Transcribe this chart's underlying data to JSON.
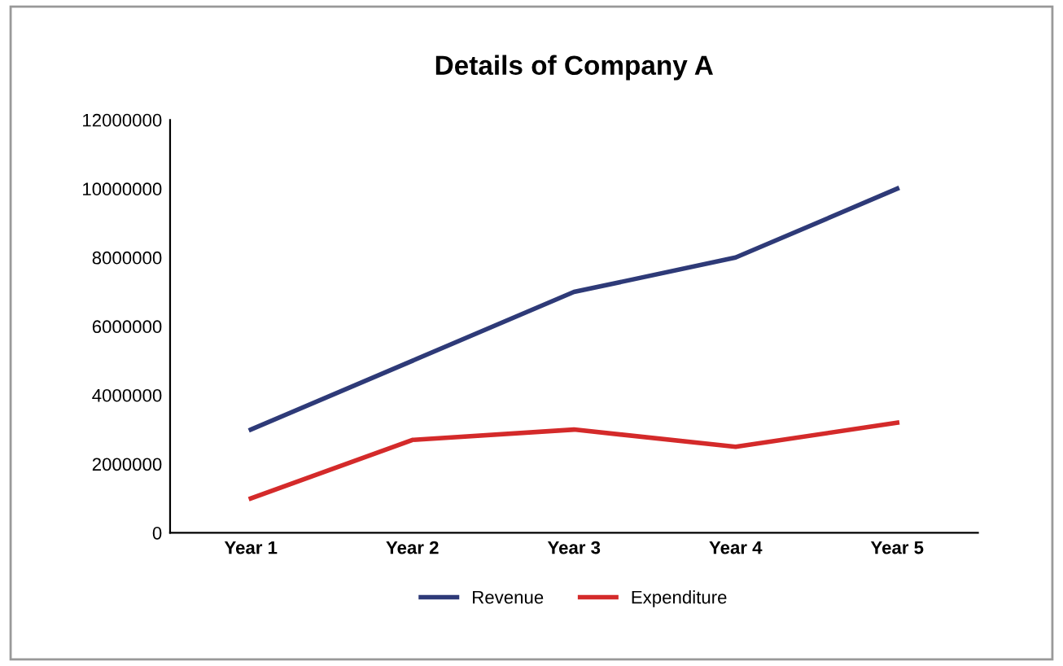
{
  "chart_data": {
    "type": "line",
    "title": "Details of Company A",
    "categories": [
      "Year 1",
      "Year 2",
      "Year 3",
      "Year 4",
      "Year 5"
    ],
    "series": [
      {
        "name": "Revenue",
        "color": "#2e3a78",
        "values": [
          3000000,
          5000000,
          7000000,
          8000000,
          10000000
        ]
      },
      {
        "name": "Expenditure",
        "color": "#d42a2a",
        "values": [
          1000000,
          2700000,
          3000000,
          2500000,
          3200000
        ]
      }
    ],
    "ylim": [
      0,
      12000000
    ],
    "yticks": [
      0,
      2000000,
      4000000,
      6000000,
      8000000,
      10000000,
      12000000
    ],
    "grid": false,
    "legend": "bottom",
    "marker": "none",
    "line_style": "solid"
  }
}
